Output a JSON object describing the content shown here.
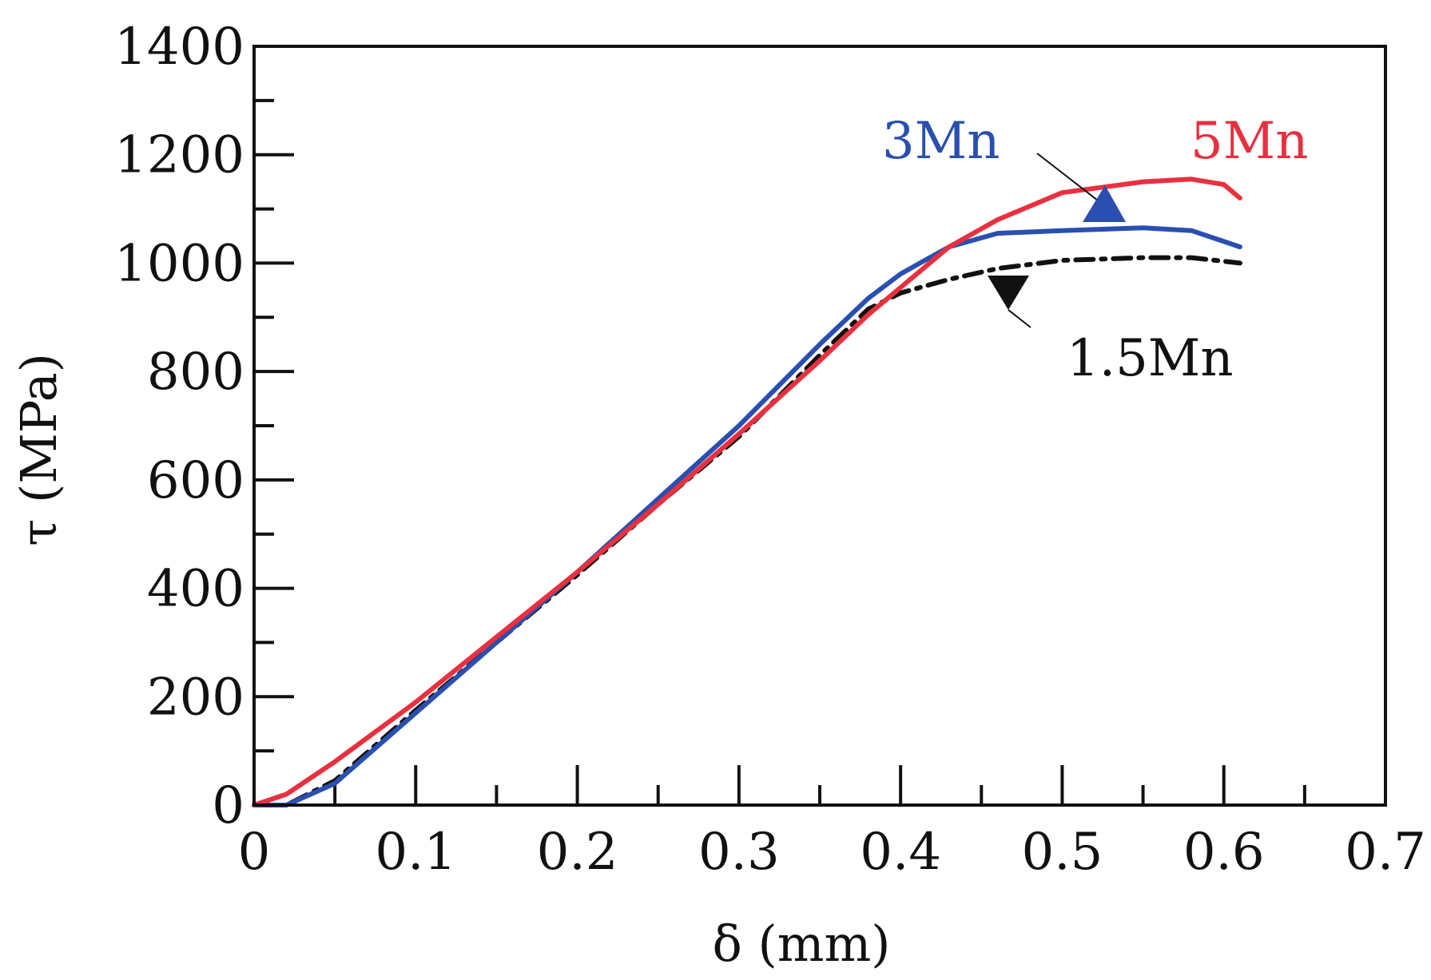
{
  "chart_data": {
    "type": "line",
    "title": "",
    "xlabel": "δ (mm)",
    "ylabel": "τ (MPa)",
    "xlim": [
      0,
      0.7
    ],
    "ylim": [
      0,
      1400
    ],
    "x_ticks": [
      "0",
      "0.1",
      "0.2",
      "0.3",
      "0.4",
      "0.5",
      "0.6",
      "0.7"
    ],
    "y_ticks": [
      "0",
      "200",
      "400",
      "600",
      "800",
      "1000",
      "1200",
      "1400"
    ],
    "grid": false,
    "series": [
      {
        "name": "1.5Mn",
        "label": "1.5Mn",
        "color": "#111111",
        "style": "dash-dot",
        "marker": "triangle-down",
        "x": [
          0.0,
          0.02,
          0.05,
          0.1,
          0.15,
          0.2,
          0.25,
          0.3,
          0.35,
          0.38,
          0.4,
          0.43,
          0.46,
          0.5,
          0.55,
          0.58,
          0.61
        ],
        "y": [
          0,
          0,
          45,
          175,
          300,
          425,
          555,
          680,
          830,
          915,
          945,
          970,
          990,
          1005,
          1010,
          1010,
          1000
        ]
      },
      {
        "name": "3Mn",
        "label": "3Mn",
        "color": "#2a4fb0",
        "style": "solid",
        "marker": "triangle-up",
        "x": [
          0.0,
          0.02,
          0.05,
          0.1,
          0.15,
          0.2,
          0.25,
          0.3,
          0.35,
          0.38,
          0.4,
          0.43,
          0.46,
          0.5,
          0.55,
          0.58,
          0.61
        ],
        "y": [
          0,
          0,
          40,
          170,
          300,
          430,
          565,
          700,
          850,
          935,
          980,
          1030,
          1055,
          1060,
          1065,
          1060,
          1030
        ]
      },
      {
        "name": "5Mn",
        "label": "5Mn",
        "color": "#e8303f",
        "style": "solid",
        "marker": "none",
        "x": [
          0.0,
          0.02,
          0.05,
          0.1,
          0.15,
          0.2,
          0.25,
          0.3,
          0.35,
          0.38,
          0.4,
          0.43,
          0.46,
          0.5,
          0.55,
          0.58,
          0.6,
          0.61
        ],
        "y": [
          0,
          20,
          80,
          190,
          310,
          430,
          555,
          685,
          820,
          905,
          955,
          1030,
          1080,
          1130,
          1150,
          1155,
          1145,
          1120
        ]
      }
    ]
  }
}
